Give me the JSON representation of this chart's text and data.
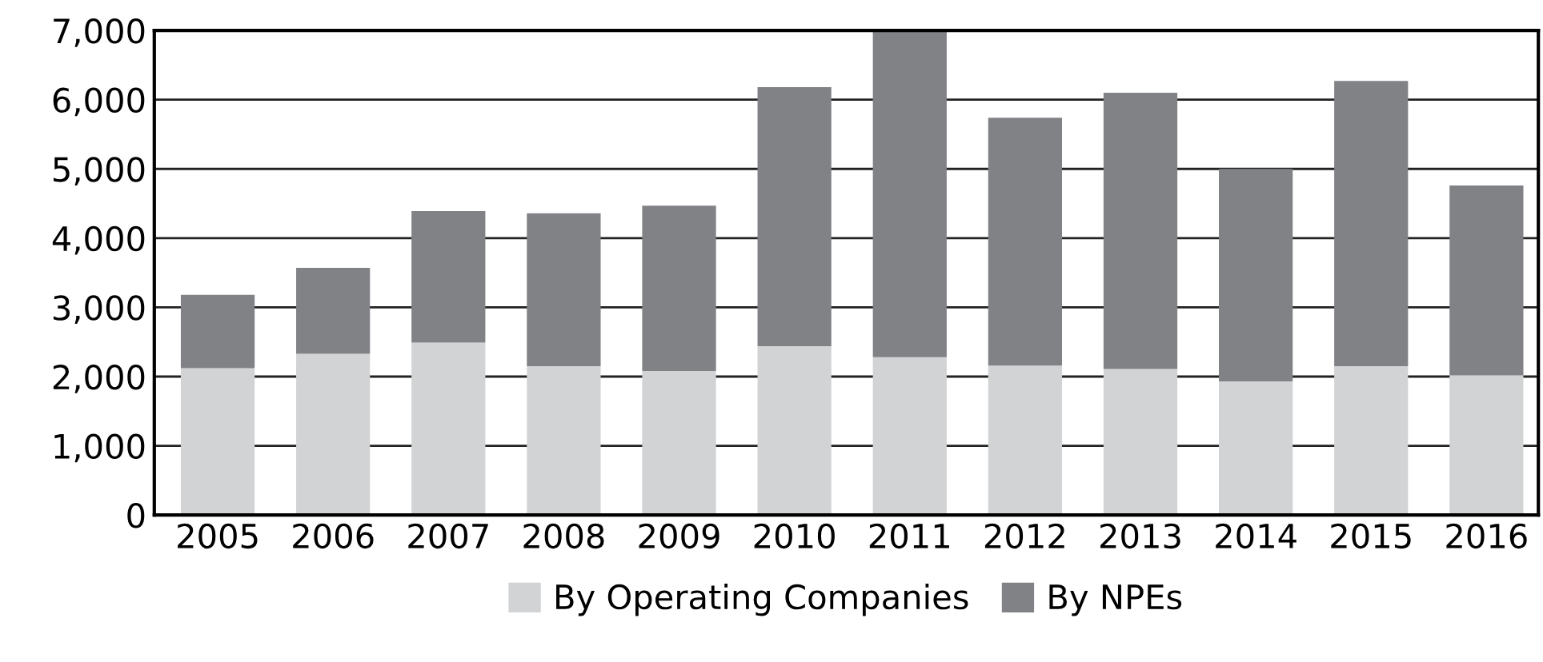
{
  "chart_data": {
    "type": "bar",
    "stacked": true,
    "categories": [
      "2005",
      "2006",
      "2007",
      "2008",
      "2009",
      "2010",
      "2011",
      "2012",
      "2013",
      "2014",
      "2015",
      "2016"
    ],
    "series": [
      {
        "name": "By Operating Companies",
        "color": "#d1d3d4",
        "values": [
          2120,
          2330,
          2490,
          2150,
          2080,
          2440,
          2280,
          2160,
          2110,
          1930,
          2150,
          2020
        ]
      },
      {
        "name": "By NPEs",
        "color": "#808285",
        "values": [
          1060,
          1240,
          1900,
          2210,
          2390,
          3740,
          4720,
          3580,
          3990,
          3070,
          4120,
          2740
        ]
      }
    ],
    "ylim": [
      0,
      7000
    ],
    "yticks": [
      {
        "value": 0,
        "label": "0"
      },
      {
        "value": 1000,
        "label": "1,000"
      },
      {
        "value": 2000,
        "label": "2,000"
      },
      {
        "value": 3000,
        "label": "3,000"
      },
      {
        "value": 4000,
        "label": "4,000"
      },
      {
        "value": 5000,
        "label": "5,000"
      },
      {
        "value": 6000,
        "label": "6,000"
      },
      {
        "value": 7000,
        "label": "7,000"
      }
    ],
    "grid": "y",
    "legend": "bottom"
  }
}
